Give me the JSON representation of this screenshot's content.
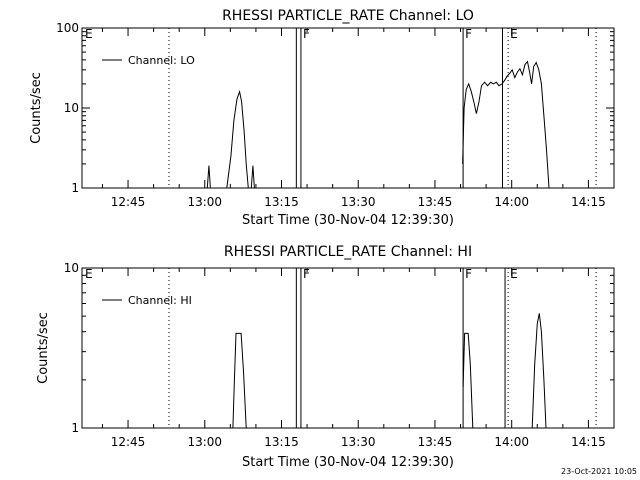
{
  "footer_timestamp": "23-Oct-2021 10:05",
  "chart_data": [
    {
      "type": "line",
      "title": "RHESSI PARTICLE_RATE Channel: LO",
      "xlabel": "Start Time (30-Nov-04 12:39:30)",
      "ylabel": "Counts/sec",
      "y_scale": "log",
      "ylim": [
        1,
        100
      ],
      "xlim": [
        -3.5,
        100.5
      ],
      "x_ticks": [
        {
          "v": 5.5,
          "label": "12:45"
        },
        {
          "v": 20.5,
          "label": "13:00"
        },
        {
          "v": 35.5,
          "label": "13:15"
        },
        {
          "v": 50.5,
          "label": "13:30"
        },
        {
          "v": 65.5,
          "label": "13:45"
        },
        {
          "v": 80.5,
          "label": "14:00"
        },
        {
          "v": 95.5,
          "label": "14:15"
        }
      ],
      "y_ticks": [
        {
          "v": 1,
          "label": "1"
        },
        {
          "v": 10,
          "label": "10"
        },
        {
          "v": 100,
          "label": "100"
        }
      ],
      "legend": {
        "position": "top-left",
        "entries": [
          "Channel: LO"
        ]
      },
      "markers": [
        {
          "x": -3.3,
          "label": "E",
          "style": "none"
        },
        {
          "x": 13.5,
          "label": "",
          "style": "dotted"
        },
        {
          "x": 38.4,
          "label": "",
          "style": "solid"
        },
        {
          "x": 39.3,
          "label": "F",
          "style": "solid"
        },
        {
          "x": 71.0,
          "label": "F",
          "style": "solid"
        },
        {
          "x": 78.7,
          "label": "",
          "style": "solid"
        },
        {
          "x": 79.8,
          "label": "E",
          "style": "dotted"
        },
        {
          "x": 97.0,
          "label": "",
          "style": "dotted"
        }
      ],
      "series": [
        {
          "name": "Channel: LO",
          "segments": [
            [
              [
                21.0,
                1
              ],
              [
                21.3,
                1.9
              ],
              [
                21.6,
                1
              ]
            ],
            [
              [
                24.8,
                1
              ],
              [
                25.6,
                2.5
              ],
              [
                26.2,
                7
              ],
              [
                26.8,
                13
              ],
              [
                27.3,
                16
              ],
              [
                27.7,
                12
              ],
              [
                28.2,
                5
              ],
              [
                28.6,
                2
              ],
              [
                29.0,
                1
              ]
            ],
            [
              [
                29.6,
                1
              ],
              [
                29.9,
                1.9
              ],
              [
                30.2,
                1
              ]
            ],
            [
              [
                70.9,
                2
              ],
              [
                71.2,
                10
              ],
              [
                71.6,
                17
              ],
              [
                72.1,
                20
              ],
              [
                72.6,
                16
              ],
              [
                73.1,
                12
              ],
              [
                73.6,
                8.5
              ],
              [
                74.1,
                12
              ],
              [
                74.6,
                19
              ],
              [
                75.2,
                21
              ],
              [
                75.8,
                19
              ],
              [
                76.4,
                21
              ],
              [
                76.9,
                20
              ],
              [
                77.5,
                21
              ],
              [
                78.0,
                19
              ],
              [
                78.6,
                20
              ],
              [
                79.1,
                22
              ],
              [
                79.6,
                25
              ],
              [
                80.1,
                27
              ],
              [
                80.6,
                30
              ],
              [
                81.1,
                24
              ],
              [
                81.6,
                28
              ],
              [
                82.1,
                31
              ],
              [
                82.6,
                26
              ],
              [
                83.1,
                35
              ],
              [
                83.6,
                38
              ],
              [
                84.0,
                28
              ],
              [
                84.4,
                20
              ],
              [
                84.8,
                33
              ],
              [
                85.3,
                37
              ],
              [
                85.8,
                30
              ],
              [
                86.3,
                20
              ],
              [
                86.8,
                8
              ],
              [
                87.3,
                3
              ],
              [
                87.8,
                1
              ]
            ]
          ]
        }
      ]
    },
    {
      "type": "line",
      "title": "RHESSI PARTICLE_RATE Channel: HI",
      "xlabel": "Start Time (30-Nov-04 12:39:30)",
      "ylabel": "Counts/sec",
      "y_scale": "log",
      "ylim": [
        1,
        10
      ],
      "xlim": [
        -3.5,
        100.5
      ],
      "x_ticks": [
        {
          "v": 5.5,
          "label": "12:45"
        },
        {
          "v": 20.5,
          "label": "13:00"
        },
        {
          "v": 35.5,
          "label": "13:15"
        },
        {
          "v": 50.5,
          "label": "13:30"
        },
        {
          "v": 65.5,
          "label": "13:45"
        },
        {
          "v": 80.5,
          "label": "14:00"
        },
        {
          "v": 95.5,
          "label": "14:15"
        }
      ],
      "y_ticks": [
        {
          "v": 1,
          "label": "1"
        },
        {
          "v": 10,
          "label": "10"
        }
      ],
      "legend": {
        "position": "top-left",
        "entries": [
          "Channel: HI"
        ]
      },
      "markers": [
        {
          "x": -3.3,
          "label": "E",
          "style": "none"
        },
        {
          "x": 13.5,
          "label": "",
          "style": "dotted"
        },
        {
          "x": 38.4,
          "label": "",
          "style": "solid"
        },
        {
          "x": 39.3,
          "label": "F",
          "style": "solid"
        },
        {
          "x": 71.0,
          "label": "F",
          "style": "solid"
        },
        {
          "x": 79.2,
          "label": "",
          "style": "solid"
        },
        {
          "x": 79.8,
          "label": "E",
          "style": "dotted"
        },
        {
          "x": 97.0,
          "label": "",
          "style": "dotted"
        }
      ],
      "series": [
        {
          "name": "Channel: HI",
          "segments": [
            [
              [
                26.0,
                1
              ],
              [
                26.3,
                2
              ],
              [
                26.6,
                3.9
              ],
              [
                27.6,
                3.9
              ],
              [
                28.1,
                2.2
              ],
              [
                28.6,
                1
              ]
            ],
            [
              [
                71.0,
                1.8
              ],
              [
                71.3,
                3.9
              ],
              [
                72.0,
                3.9
              ],
              [
                72.4,
                2.5
              ],
              [
                72.9,
                1
              ]
            ],
            [
              [
                84.5,
                1
              ],
              [
                85.0,
                2.5
              ],
              [
                85.5,
                4.5
              ],
              [
                85.9,
                5.2
              ],
              [
                86.3,
                4
              ],
              [
                86.8,
                2
              ],
              [
                87.2,
                1
              ]
            ]
          ]
        }
      ]
    }
  ]
}
